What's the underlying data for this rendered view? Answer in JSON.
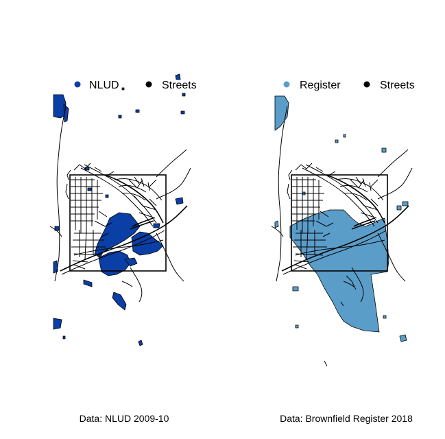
{
  "colors": {
    "nlud": "#0a3fa6",
    "register": "#5b9dc9",
    "streets": "#000000",
    "background": "#ffffff"
  },
  "panels": [
    {
      "legend": [
        {
          "label": "NLUD",
          "color": "#0a3fa6"
        },
        {
          "label": "Streets",
          "color": "#000000"
        }
      ],
      "caption": "Data: NLUD 2009-10"
    },
    {
      "legend": [
        {
          "label": "Register",
          "color": "#5b9dc9"
        },
        {
          "label": "Streets",
          "color": "#000000"
        }
      ],
      "caption": "Data: Brownfield Register 2018"
    }
  ]
}
